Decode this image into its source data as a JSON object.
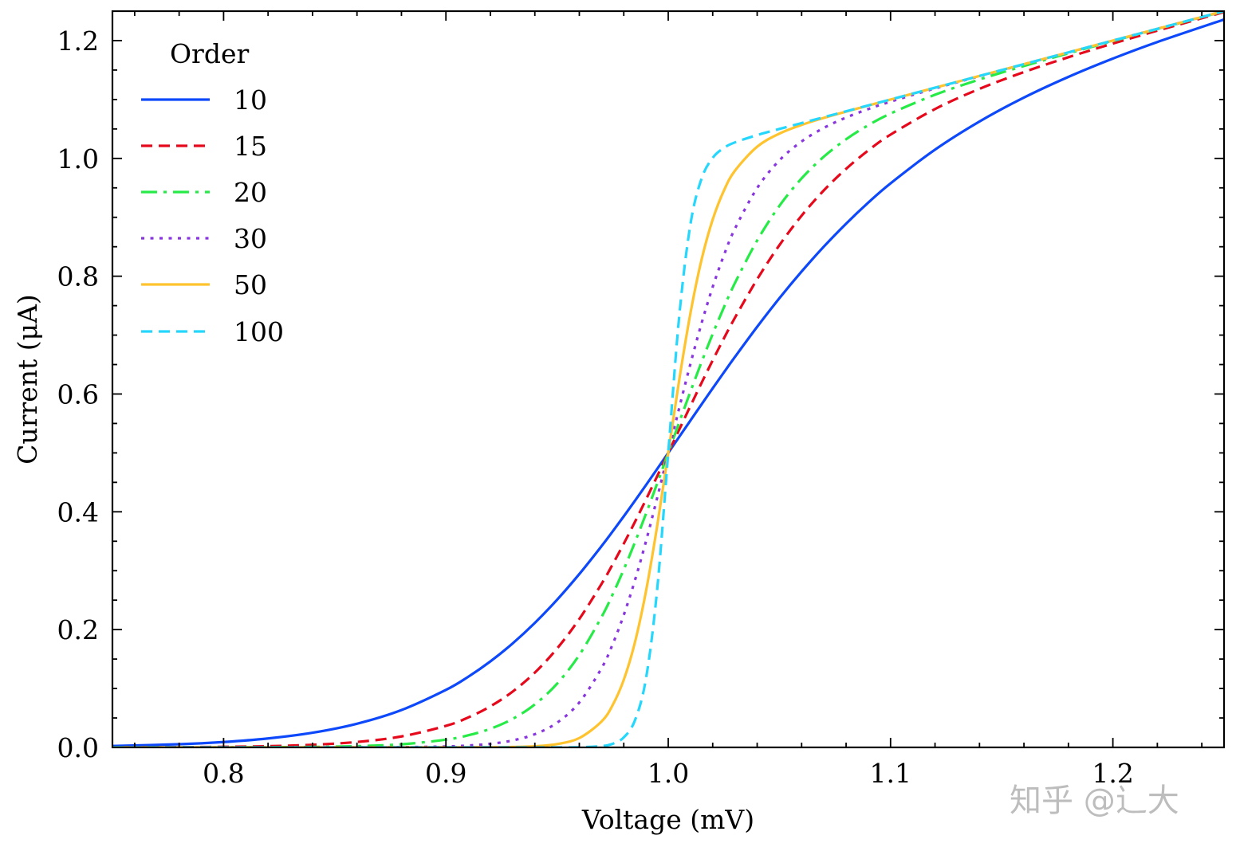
{
  "chart_data": {
    "type": "line",
    "title": "",
    "xlabel": "Voltage (mV)",
    "ylabel": "Current (μA)",
    "xlim": [
      0.75,
      1.25
    ],
    "ylim": [
      0,
      1.25
    ],
    "xticks": [
      0.8,
      0.9,
      1.0,
      1.1,
      1.2
    ],
    "xtick_labels": [
      "0.8",
      "0.9",
      "1.0",
      "1.1",
      "1.2"
    ],
    "x_minor_step": 0.02,
    "yticks": [
      0.0,
      0.2,
      0.4,
      0.6,
      0.8,
      1.0,
      1.2
    ],
    "ytick_labels": [
      "0.0",
      "0.2",
      "0.4",
      "0.6",
      "0.8",
      "1.0",
      "1.2"
    ],
    "y_minor_step": 0.05,
    "ticks_direction": "in",
    "ticks_on_all_sides": true,
    "grid": false,
    "legend": {
      "title": "Order",
      "placement": "top-left",
      "frame": false
    },
    "x": [
      0.75,
      0.78,
      0.8,
      0.82,
      0.84,
      0.86,
      0.88,
      0.9,
      0.91,
      0.92,
      0.93,
      0.94,
      0.95,
      0.96,
      0.97,
      0.975,
      0.98,
      0.985,
      0.99,
      0.995,
      1.0,
      1.005,
      1.01,
      1.015,
      1.02,
      1.025,
      1.03,
      1.04,
      1.05,
      1.06,
      1.07,
      1.08,
      1.09,
      1.1,
      1.12,
      1.14,
      1.16,
      1.18,
      1.2,
      1.22,
      1.25
    ],
    "series": [
      {
        "name": "10",
        "color": "#0d49fb",
        "linestyle": "solid",
        "values": [
          0.0024,
          0.0054,
          0.0091,
          0.0152,
          0.0249,
          0.0402,
          0.0634,
          0.0976,
          0.1198,
          0.146,
          0.1765,
          0.2114,
          0.2507,
          0.2943,
          0.3417,
          0.3667,
          0.3923,
          0.4186,
          0.4454,
          0.4726,
          0.5,
          0.5276,
          0.5551,
          0.5825,
          0.6097,
          0.6365,
          0.6629,
          0.7141,
          0.7626,
          0.808,
          0.8503,
          0.8892,
          0.925,
          0.9577,
          1.0148,
          1.0626,
          1.1033,
          1.1384,
          1.1695,
          1.1976,
          1.2358
        ]
      },
      {
        "name": "15",
        "color": "#e6091c",
        "linestyle": "dashed",
        "values": [
          0.0001,
          0.0005,
          0.001,
          0.0021,
          0.0045,
          0.0092,
          0.0186,
          0.0366,
          0.0508,
          0.0697,
          0.0947,
          0.127,
          0.1679,
          0.218,
          0.2776,
          0.3108,
          0.3459,
          0.3827,
          0.4209,
          0.4602,
          0.5,
          0.54,
          0.5798,
          0.619,
          0.6572,
          0.6941,
          0.7295,
          0.7949,
          0.8527,
          0.9028,
          0.9458,
          0.9823,
          1.0136,
          1.0404,
          1.0838,
          1.1181,
          1.1466,
          1.1718,
          1.195,
          1.2169,
          1.2485
        ]
      },
      {
        "name": "20",
        "color": "#26eb47",
        "linestyle": "dashdot",
        "values": [
          0.0,
          0.0,
          0.0001,
          0.0003,
          0.0008,
          0.0021,
          0.0053,
          0.0131,
          0.0205,
          0.0316,
          0.0484,
          0.073,
          0.1082,
          0.1569,
          0.2214,
          0.2598,
          0.3021,
          0.348,
          0.3968,
          0.4478,
          0.5,
          0.5525,
          0.6042,
          0.6543,
          0.702,
          0.7468,
          0.7884,
          0.8607,
          0.9194,
          0.9661,
          1.003,
          1.0325,
          1.0564,
          1.0762,
          1.1081,
          1.134,
          1.1569,
          1.1784,
          1.1992,
          1.2196,
          1.2498
        ]
      },
      {
        "name": "30",
        "color": "#8936df",
        "linestyle": "dotted",
        "values": [
          0.0,
          0.0,
          0.0,
          0.0,
          0.0,
          0.0001,
          0.0004,
          0.0016,
          0.0032,
          0.0061,
          0.0118,
          0.0224,
          0.0419,
          0.0763,
          0.1344,
          0.1751,
          0.2248,
          0.2834,
          0.3501,
          0.4233,
          0.5,
          0.5772,
          0.6514,
          0.7202,
          0.7817,
          0.8352,
          0.8806,
          0.9497,
          0.9967,
          1.0288,
          1.0518,
          1.0694,
          1.0838,
          1.0964,
          1.1188,
          1.1396,
          1.1598,
          1.1799,
          1.2,
          1.22,
          1.25
        ]
      },
      {
        "name": "50",
        "color": "#fec32d",
        "linestyle": "solid",
        "values": [
          0.0,
          0.0,
          0.0,
          0.0,
          0.0,
          0.0,
          0.0,
          0.0,
          0.0001,
          0.0002,
          0.0007,
          0.0019,
          0.0056,
          0.0159,
          0.044,
          0.0718,
          0.1148,
          0.1781,
          0.2653,
          0.3754,
          0.5,
          0.6254,
          0.7374,
          0.8282,
          0.8962,
          0.945,
          0.9791,
          1.0198,
          1.0421,
          1.0569,
          1.0688,
          1.0795,
          1.0898,
          1.0999,
          1.12,
          1.14,
          1.16,
          1.18,
          1.2,
          1.22,
          1.25
        ]
      },
      {
        "name": "100",
        "color": "#25d7fd",
        "linestyle": "dashed",
        "values": [
          0.0,
          0.0,
          0.0,
          0.0,
          0.0,
          0.0,
          0.0,
          0.0,
          0.0,
          0.0,
          0.0,
          0.0,
          0.0,
          0.0003,
          0.0022,
          0.0061,
          0.017,
          0.0458,
          0.117,
          0.2672,
          0.5,
          0.7343,
          0.8885,
          0.9658,
          1.0009,
          1.0177,
          1.0272,
          1.0396,
          1.05,
          1.06,
          1.07,
          1.08,
          1.09,
          1.1,
          1.12,
          1.14,
          1.16,
          1.18,
          1.2,
          1.22,
          1.25
        ]
      }
    ]
  },
  "watermark": "知乎 @辶大"
}
